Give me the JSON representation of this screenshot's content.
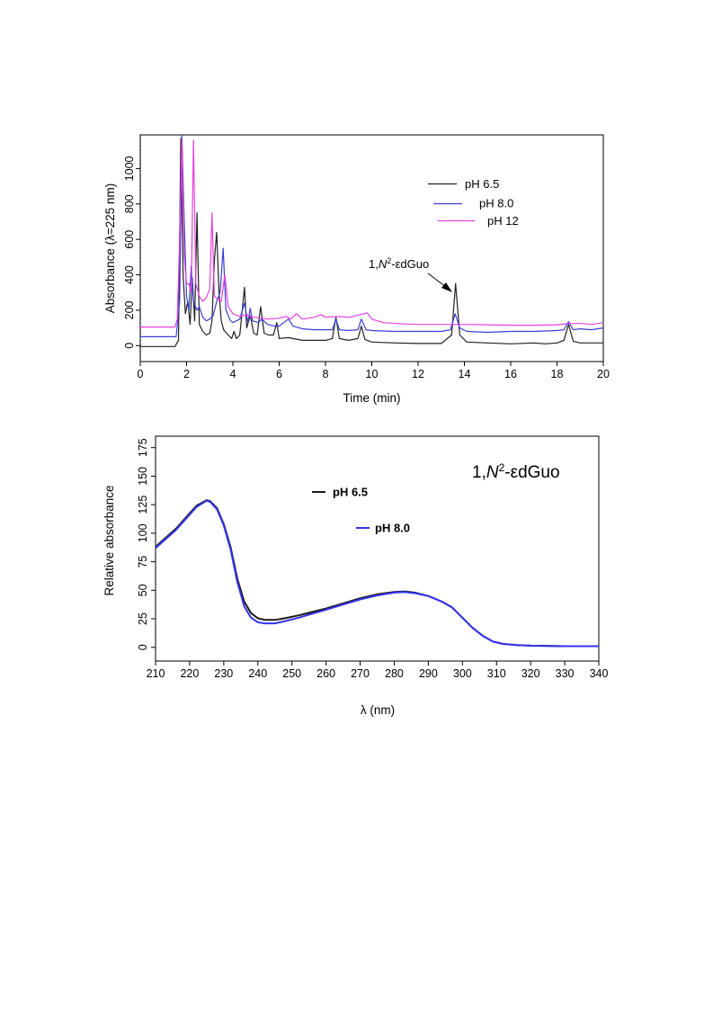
{
  "chart_data": [
    {
      "type": "line",
      "xlabel": "Time (min)",
      "ylabel": "Absorbance (λ=225 nm)",
      "xlim": [
        0,
        20
      ],
      "ylim": [
        -90,
        1190
      ],
      "x_ticks": [
        "0",
        "2",
        "4",
        "6",
        "8",
        "10",
        "12",
        "14",
        "16",
        "18",
        "20"
      ],
      "y_ticks": [
        "0",
        "200",
        "400",
        "600",
        "800",
        "1000"
      ],
      "grid": false,
      "legend_position": "top-right",
      "annotation": {
        "prefix": "1,",
        "italic": "N",
        "sup": "2",
        "suffix": "-εdGuo",
        "x": 13.6
      },
      "series": [
        {
          "name": "pH 6.5",
          "color": "#222222",
          "points": [
            [
              0,
              -5
            ],
            [
              1.5,
              -5
            ],
            [
              1.65,
              30
            ],
            [
              1.75,
              1170
            ],
            [
              1.85,
              400
            ],
            [
              1.95,
              180
            ],
            [
              2.05,
              250
            ],
            [
              2.15,
              120
            ],
            [
              2.25,
              380
            ],
            [
              2.35,
              140
            ],
            [
              2.45,
              750
            ],
            [
              2.55,
              120
            ],
            [
              2.7,
              80
            ],
            [
              2.85,
              60
            ],
            [
              3.0,
              70
            ],
            [
              3.1,
              140
            ],
            [
              3.2,
              480
            ],
            [
              3.3,
              640
            ],
            [
              3.4,
              300
            ],
            [
              3.5,
              140
            ],
            [
              3.6,
              90
            ],
            [
              3.8,
              60
            ],
            [
              3.95,
              40
            ],
            [
              4.05,
              80
            ],
            [
              4.15,
              40
            ],
            [
              4.3,
              60
            ],
            [
              4.5,
              330
            ],
            [
              4.6,
              100
            ],
            [
              4.75,
              170
            ],
            [
              4.9,
              70
            ],
            [
              5.05,
              60
            ],
            [
              5.2,
              220
            ],
            [
              5.35,
              70
            ],
            [
              5.55,
              60
            ],
            [
              5.75,
              60
            ],
            [
              5.9,
              130
            ],
            [
              6.0,
              40
            ],
            [
              6.4,
              45
            ],
            [
              6.6,
              40
            ],
            [
              7.0,
              30
            ],
            [
              7.5,
              30
            ],
            [
              8.0,
              30
            ],
            [
              8.3,
              40
            ],
            [
              8.45,
              160
            ],
            [
              8.6,
              40
            ],
            [
              9.0,
              30
            ],
            [
              9.4,
              40
            ],
            [
              9.55,
              110
            ],
            [
              9.7,
              35
            ],
            [
              10,
              20
            ],
            [
              11,
              15
            ],
            [
              12,
              12
            ],
            [
              13,
              12
            ],
            [
              13.45,
              60
            ],
            [
              13.62,
              350
            ],
            [
              13.8,
              60
            ],
            [
              14.1,
              20
            ],
            [
              15,
              15
            ],
            [
              16,
              10
            ],
            [
              17,
              15
            ],
            [
              17.5,
              10
            ],
            [
              18,
              15
            ],
            [
              18.3,
              30
            ],
            [
              18.5,
              120
            ],
            [
              18.7,
              25
            ],
            [
              19,
              15
            ],
            [
              20,
              15
            ]
          ]
        },
        {
          "name": "pH 8.0",
          "color": "#3a3fd8",
          "points": [
            [
              0,
              50
            ],
            [
              1.55,
              50
            ],
            [
              1.7,
              250
            ],
            [
              1.8,
              1190
            ],
            [
              1.9,
              700
            ],
            [
              2.0,
              280
            ],
            [
              2.1,
              200
            ],
            [
              2.2,
              450
            ],
            [
              2.3,
              250
            ],
            [
              2.45,
              200
            ],
            [
              2.55,
              220
            ],
            [
              2.7,
              160
            ],
            [
              2.85,
              140
            ],
            [
              3.0,
              150
            ],
            [
              3.15,
              170
            ],
            [
              3.3,
              250
            ],
            [
              3.45,
              300
            ],
            [
              3.58,
              550
            ],
            [
              3.7,
              200
            ],
            [
              3.9,
              140
            ],
            [
              4.0,
              130
            ],
            [
              4.3,
              150
            ],
            [
              4.5,
              240
            ],
            [
              4.65,
              130
            ],
            [
              4.75,
              210
            ],
            [
              4.85,
              140
            ],
            [
              5.1,
              130
            ],
            [
              5.25,
              150
            ],
            [
              5.5,
              120
            ],
            [
              5.8,
              110
            ],
            [
              6.0,
              110
            ],
            [
              6.2,
              130
            ],
            [
              6.4,
              150
            ],
            [
              6.6,
              110
            ],
            [
              7.0,
              95
            ],
            [
              7.5,
              90
            ],
            [
              8.0,
              90
            ],
            [
              8.3,
              90
            ],
            [
              8.45,
              150
            ],
            [
              8.6,
              90
            ],
            [
              9.0,
              85
            ],
            [
              9.4,
              90
            ],
            [
              9.55,
              150
            ],
            [
              9.75,
              90
            ],
            [
              10,
              85
            ],
            [
              11,
              80
            ],
            [
              12,
              80
            ],
            [
              13,
              80
            ],
            [
              13.4,
              90
            ],
            [
              13.6,
              180
            ],
            [
              13.8,
              100
            ],
            [
              14.1,
              80
            ],
            [
              15,
              75
            ],
            [
              16,
              80
            ],
            [
              17,
              80
            ],
            [
              18,
              85
            ],
            [
              18.3,
              90
            ],
            [
              18.5,
              135
            ],
            [
              18.7,
              90
            ],
            [
              19,
              95
            ],
            [
              19.5,
              90
            ],
            [
              20,
              100
            ]
          ]
        },
        {
          "name": "pH 12",
          "color": "#e83fe0",
          "points": [
            [
              0,
              105
            ],
            [
              1.5,
              105
            ],
            [
              1.6,
              150
            ],
            [
              1.7,
              600
            ],
            [
              1.8,
              1170
            ],
            [
              1.9,
              500
            ],
            [
              2.0,
              350
            ],
            [
              2.1,
              350
            ],
            [
              2.2,
              300
            ],
            [
              2.3,
              1160
            ],
            [
              2.4,
              350
            ],
            [
              2.55,
              280
            ],
            [
              2.7,
              250
            ],
            [
              2.85,
              270
            ],
            [
              3.0,
              320
            ],
            [
              3.1,
              750
            ],
            [
              3.2,
              280
            ],
            [
              3.35,
              260
            ],
            [
              3.5,
              250
            ],
            [
              3.65,
              400
            ],
            [
              3.8,
              220
            ],
            [
              4.0,
              180
            ],
            [
              4.3,
              165
            ],
            [
              4.6,
              175
            ],
            [
              4.8,
              160
            ],
            [
              5.0,
              160
            ],
            [
              5.5,
              150
            ],
            [
              6.0,
              155
            ],
            [
              6.3,
              165
            ],
            [
              6.5,
              150
            ],
            [
              6.75,
              180
            ],
            [
              7.0,
              150
            ],
            [
              7.5,
              160
            ],
            [
              7.8,
              175
            ],
            [
              8.0,
              160
            ],
            [
              8.5,
              165
            ],
            [
              9.0,
              160
            ],
            [
              9.5,
              175
            ],
            [
              9.8,
              185
            ],
            [
              10.0,
              150
            ],
            [
              10.5,
              130
            ],
            [
              11,
              125
            ],
            [
              12,
              120
            ],
            [
              13,
              120
            ],
            [
              13.6,
              120
            ],
            [
              14,
              120
            ],
            [
              15,
              118
            ],
            [
              16,
              115
            ],
            [
              17,
              115
            ],
            [
              18,
              118
            ],
            [
              18.5,
              125
            ],
            [
              19,
              125
            ],
            [
              19.5,
              120
            ],
            [
              20,
              130
            ]
          ]
        }
      ]
    },
    {
      "type": "line",
      "xlabel": "λ (nm)",
      "ylabel": "Relative absorbance",
      "xlim": [
        210,
        340
      ],
      "ylim": [
        -12,
        185
      ],
      "x_ticks": [
        "210",
        "220",
        "230",
        "240",
        "250",
        "260",
        "270",
        "280",
        "290",
        "300",
        "310",
        "320",
        "330",
        "340"
      ],
      "y_ticks": [
        "0",
        "25",
        "50",
        "75",
        "100",
        "125",
        "150",
        "175"
      ],
      "grid": false,
      "legend_position": "top-center",
      "annotation": {
        "prefix": "1,",
        "italic": "N",
        "sup": "2",
        "suffix": "-εdGuo"
      },
      "series": [
        {
          "name": "pH 6.5",
          "color": "#1a1a1a",
          "points": [
            [
              210,
              88
            ],
            [
              213,
              96
            ],
            [
              216,
              104
            ],
            [
              219,
              114
            ],
            [
              222,
              124
            ],
            [
              225,
              129
            ],
            [
              226,
              128
            ],
            [
              228,
              122
            ],
            [
              230,
              108
            ],
            [
              232,
              88
            ],
            [
              234,
              60
            ],
            [
              236,
              40
            ],
            [
              238,
              30
            ],
            [
              240,
              25.5
            ],
            [
              242,
              24
            ],
            [
              245,
              24
            ],
            [
              248,
              25.5
            ],
            [
              252,
              28
            ],
            [
              256,
              31
            ],
            [
              260,
              34
            ],
            [
              265,
              38.5
            ],
            [
              270,
              43
            ],
            [
              275,
              46.5
            ],
            [
              280,
              48.5
            ],
            [
              283,
              49
            ],
            [
              286,
              48
            ],
            [
              290,
              45
            ],
            [
              294,
              40
            ],
            [
              297,
              35
            ],
            [
              300,
              26
            ],
            [
              303,
              17
            ],
            [
              306,
              10
            ],
            [
              309,
              5
            ],
            [
              312,
              3
            ],
            [
              316,
              2
            ],
            [
              320,
              1.5
            ],
            [
              330,
              1
            ],
            [
              340,
              1
            ]
          ]
        },
        {
          "name": "pH 8.0",
          "color": "#3333ee",
          "points": [
            [
              210,
              87
            ],
            [
              213,
              95
            ],
            [
              216,
              103
            ],
            [
              219,
              113
            ],
            [
              222,
              123
            ],
            [
              225,
              128.5
            ],
            [
              226,
              127.5
            ],
            [
              228,
              121
            ],
            [
              230,
              107
            ],
            [
              232,
              86
            ],
            [
              234,
              57
            ],
            [
              236,
              36
            ],
            [
              238,
              26
            ],
            [
              240,
              22
            ],
            [
              242,
              21
            ],
            [
              245,
              21
            ],
            [
              248,
              23
            ],
            [
              252,
              26
            ],
            [
              256,
              29.5
            ],
            [
              260,
              33
            ],
            [
              265,
              37.5
            ],
            [
              270,
              42
            ],
            [
              275,
              45.5
            ],
            [
              280,
              48
            ],
            [
              283,
              48.5
            ],
            [
              286,
              47.5
            ],
            [
              290,
              45
            ],
            [
              294,
              40
            ],
            [
              297,
              35
            ],
            [
              300,
              26
            ],
            [
              303,
              17
            ],
            [
              306,
              10
            ],
            [
              309,
              5
            ],
            [
              312,
              3
            ],
            [
              316,
              2
            ],
            [
              320,
              1.5
            ],
            [
              330,
              1
            ],
            [
              340,
              1
            ]
          ]
        }
      ]
    }
  ]
}
